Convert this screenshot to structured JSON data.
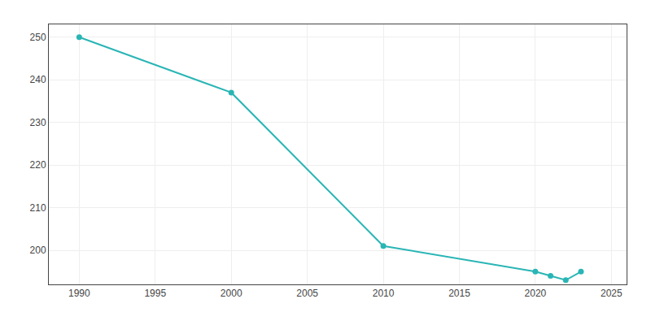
{
  "chart_data": {
    "type": "line",
    "x": [
      1990,
      2000,
      2010,
      2020,
      2021,
      2022,
      2023
    ],
    "values": [
      250,
      237,
      201,
      195,
      194,
      193,
      195
    ],
    "color": "#2ab5b5",
    "marker": "circle",
    "line_style": "solid",
    "xlim": [
      1988,
      2026
    ],
    "ylim": [
      192,
      253
    ],
    "xticks": [
      1990,
      1995,
      2000,
      2005,
      2010,
      2015,
      2020,
      2025
    ],
    "yticks": [
      200,
      210,
      220,
      230,
      240,
      250
    ],
    "grid": true
  }
}
